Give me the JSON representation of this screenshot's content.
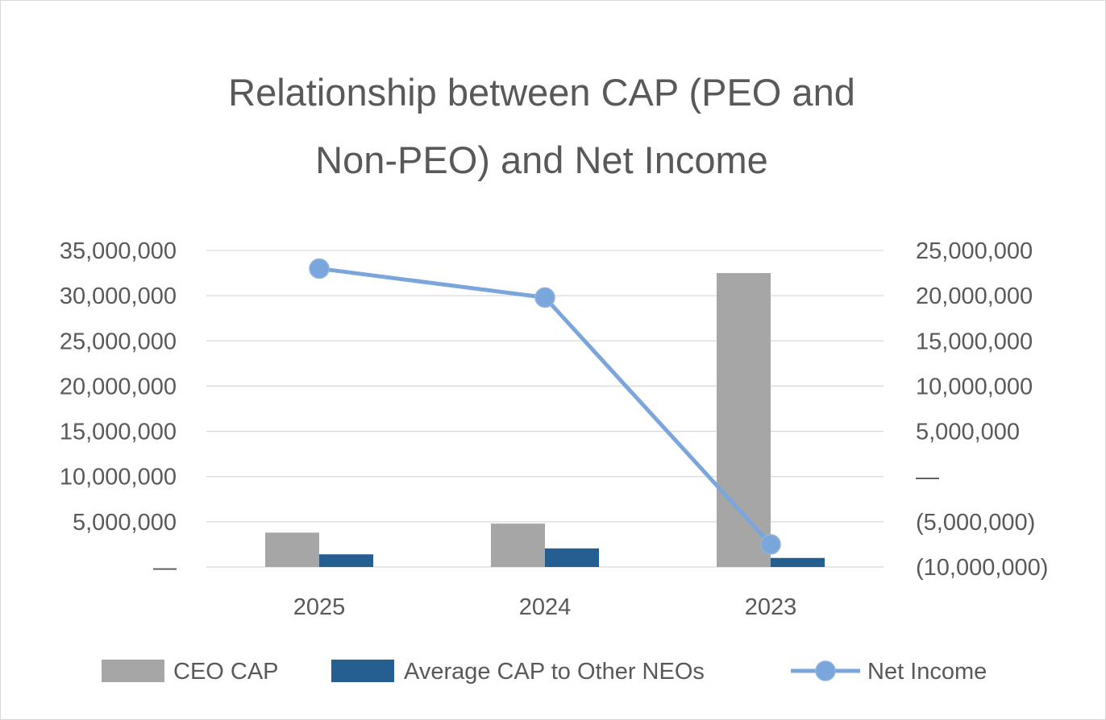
{
  "chart_data": {
    "type": "bar",
    "title_lines": [
      "Relationship between CAP (PEO and",
      "Non-PEO) and Net Income"
    ],
    "categories": [
      "2025",
      "2024",
      "2023"
    ],
    "series": [
      {
        "name": "CEO CAP",
        "type": "bar",
        "axis": "left",
        "color": "#a6a6a6",
        "values": [
          3800000,
          4800000,
          32500000
        ]
      },
      {
        "name": "Average CAP to Other NEOs",
        "type": "bar",
        "axis": "left",
        "color": "#255e91",
        "values": [
          1400000,
          2050000,
          1000000
        ]
      },
      {
        "name": "Net Income",
        "type": "line",
        "axis": "right",
        "color": "#7aa6dc",
        "values": [
          23000000,
          19800000,
          -7500000
        ]
      }
    ],
    "left_axis": {
      "ylim": [
        0,
        35000000
      ],
      "ticks": [
        0,
        5000000,
        10000000,
        15000000,
        20000000,
        25000000,
        30000000,
        35000000
      ],
      "tick_labels": [
        "—",
        "5,000,000",
        "10,000,000",
        "15,000,000",
        "20,000,000",
        "25,000,000",
        "30,000,000",
        "35,000,000"
      ]
    },
    "right_axis": {
      "ylim": [
        -10000000,
        25000000
      ],
      "ticks": [
        -10000000,
        -5000000,
        0,
        5000000,
        10000000,
        15000000,
        20000000,
        25000000
      ],
      "tick_labels": [
        "(10,000,000)",
        "(5,000,000)",
        "—",
        "5,000,000",
        "10,000,000",
        "15,000,000",
        "20,000,000",
        "25,000,000"
      ]
    },
    "grid": true,
    "legend": "bottom"
  }
}
